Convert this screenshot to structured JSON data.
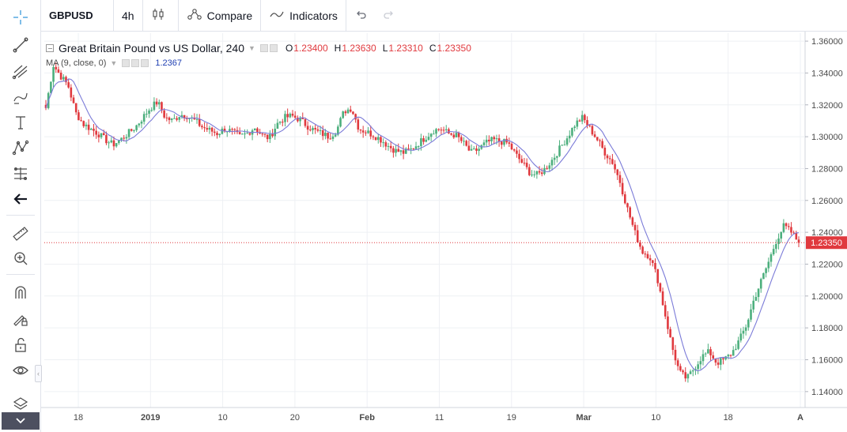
{
  "toolbar": {
    "symbol": "GBPUSD",
    "interval": "4h",
    "compare_label": "Compare",
    "indicators_label": "Indicators"
  },
  "legend": {
    "title": "Great Britain Pound vs US Dollar, 240",
    "open_key": "O",
    "open": "1.23400",
    "high_key": "H",
    "high": "1.23630",
    "low_key": "L",
    "low": "1.23310",
    "close_key": "C",
    "close": "1.23350",
    "ma_label": "MA (9, close, 0)",
    "ma_value": "1.2367"
  },
  "colors": {
    "up": "#4caf7d",
    "down": "#e0393e",
    "ma": "#7b7bd8",
    "grid": "#eef0f4",
    "price_line": "#e0393e",
    "axis_text": "#4a4a4a"
  },
  "icons": [
    "crosshair-icon",
    "trend-line-icon",
    "pitchfork-icon",
    "brush-icon",
    "text-icon",
    "pattern-icon",
    "measure-icon",
    "back-arrow-icon",
    "ruler-icon",
    "zoom-in-icon",
    "magnet-icon",
    "lock-drawing-icon",
    "unlock-icon",
    "eye-icon",
    "layers-icon",
    "chevron-down-icon"
  ],
  "chart_data": {
    "type": "candlestick",
    "title": "Great Britain Pound vs US Dollar, 240",
    "ylim": [
      1.13,
      1.365
    ],
    "y_ticks": [
      "1.36000",
      "1.34000",
      "1.32000",
      "1.30000",
      "1.28000",
      "1.26000",
      "1.24000",
      "1.22000",
      "1.20000",
      "1.18000",
      "1.16000",
      "1.14000"
    ],
    "x_ticks": [
      "18",
      "2019",
      "10",
      "20",
      "Feb",
      "11",
      "19",
      "Mar",
      "10",
      "18",
      "A"
    ],
    "last_price": "1.23350",
    "last_price_value": 1.2335,
    "close_path": [
      1.318,
      1.345,
      1.338,
      1.332,
      1.315,
      1.308,
      1.305,
      1.302,
      1.298,
      1.295,
      1.298,
      1.302,
      1.306,
      1.312,
      1.318,
      1.322,
      1.312,
      1.31,
      1.314,
      1.313,
      1.31,
      1.306,
      1.304,
      1.302,
      1.305,
      1.303,
      1.3,
      1.302,
      1.306,
      1.301,
      1.299,
      1.308,
      1.312,
      1.313,
      1.311,
      1.307,
      1.304,
      1.302,
      1.3,
      1.304,
      1.316,
      1.318,
      1.305,
      1.303,
      1.301,
      1.298,
      1.294,
      1.291,
      1.29,
      1.292,
      1.296,
      1.3,
      1.304,
      1.305,
      1.302,
      1.301,
      1.296,
      1.29,
      1.292,
      1.296,
      1.298,
      1.297,
      1.296,
      1.289,
      1.283,
      1.277,
      1.276,
      1.28,
      1.286,
      1.293,
      1.3,
      1.308,
      1.312,
      1.305,
      1.298,
      1.29,
      1.284,
      1.272,
      1.255,
      1.24,
      1.228,
      1.225,
      1.212,
      1.19,
      1.168,
      1.152,
      1.148,
      1.155,
      1.162,
      1.165,
      1.158,
      1.16,
      1.164,
      1.172,
      1.182,
      1.198,
      1.21,
      1.222,
      1.235,
      1.244,
      1.24,
      1.2335
    ]
  }
}
